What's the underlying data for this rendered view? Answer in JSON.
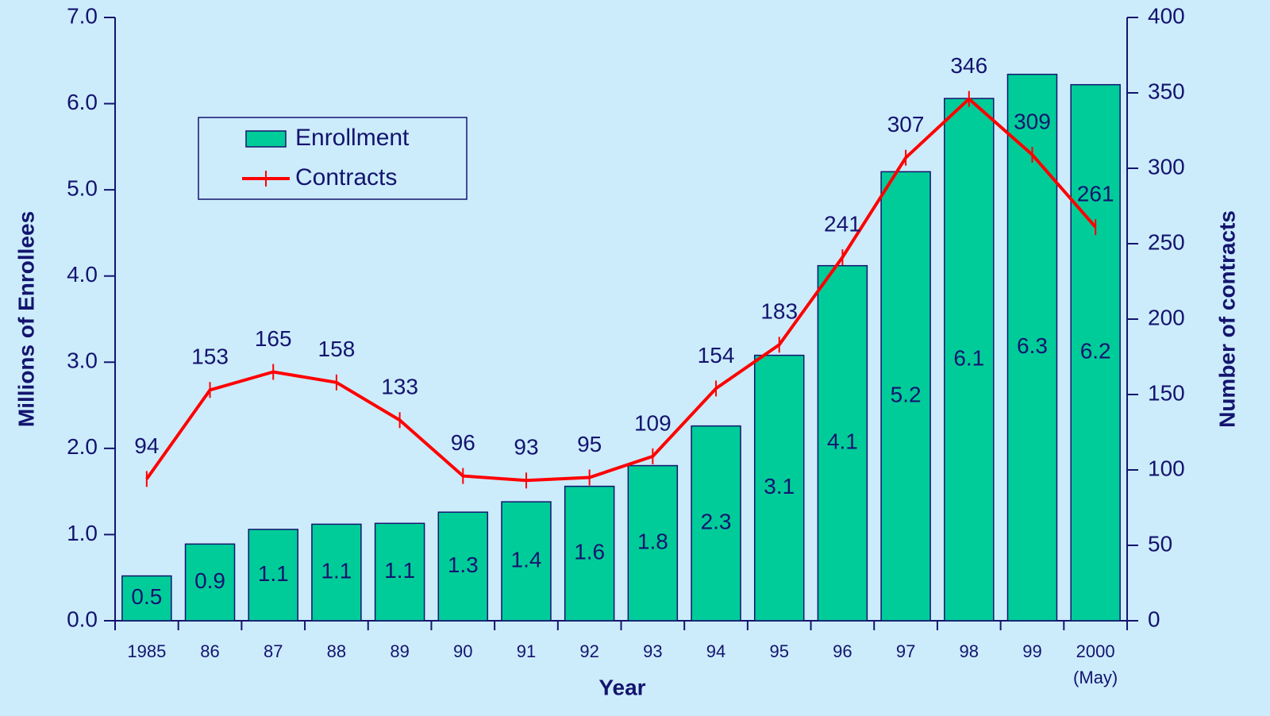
{
  "chart_data": {
    "type": "bar",
    "x_label": "Year",
    "y_label": "Millions of Enrollees",
    "y2_label": "Number of contracts",
    "x_note": "(May)",
    "categories": [
      "1985",
      "86",
      "87",
      "88",
      "89",
      "90",
      "91",
      "92",
      "93",
      "94",
      "95",
      "96",
      "97",
      "98",
      "99",
      "2000"
    ],
    "series": [
      {
        "name": "Enrollment",
        "type": "bar",
        "color": "#00cc99",
        "values": [
          0.52,
          0.89,
          1.06,
          1.12,
          1.13,
          1.26,
          1.38,
          1.56,
          1.8,
          2.26,
          3.08,
          4.12,
          5.21,
          6.06,
          6.34,
          6.22
        ],
        "value_labels": [
          "0.5",
          "0.9",
          "1.1",
          "1.1",
          "1.1",
          "1.3",
          "1.4",
          "1.6",
          "1.8",
          "2.3",
          "3.1",
          "4.1",
          "5.2",
          "6.1",
          "6.3",
          "6.2"
        ]
      },
      {
        "name": "Contracts",
        "type": "line",
        "axis": "y2",
        "color": "#ff0000",
        "values": [
          94,
          153,
          165,
          158,
          133,
          96,
          93,
          95,
          109,
          154,
          183,
          241,
          307,
          346,
          309,
          261
        ]
      }
    ],
    "ylim": [
      0,
      7
    ],
    "yticks": [
      {
        "value": 0,
        "label": "0.0"
      },
      {
        "value": 1,
        "label": "1.0"
      },
      {
        "value": 2,
        "label": "2.0"
      },
      {
        "value": 3,
        "label": "3.0"
      },
      {
        "value": 4,
        "label": "4.0"
      },
      {
        "value": 5,
        "label": "5.0"
      },
      {
        "value": 6,
        "label": "6.0"
      },
      {
        "value": 7,
        "label": "7.0"
      }
    ],
    "y2lim": [
      0,
      400
    ],
    "y2ticks": [
      0,
      50,
      100,
      150,
      200,
      250,
      300,
      350,
      400
    ],
    "legend": "upper left"
  }
}
